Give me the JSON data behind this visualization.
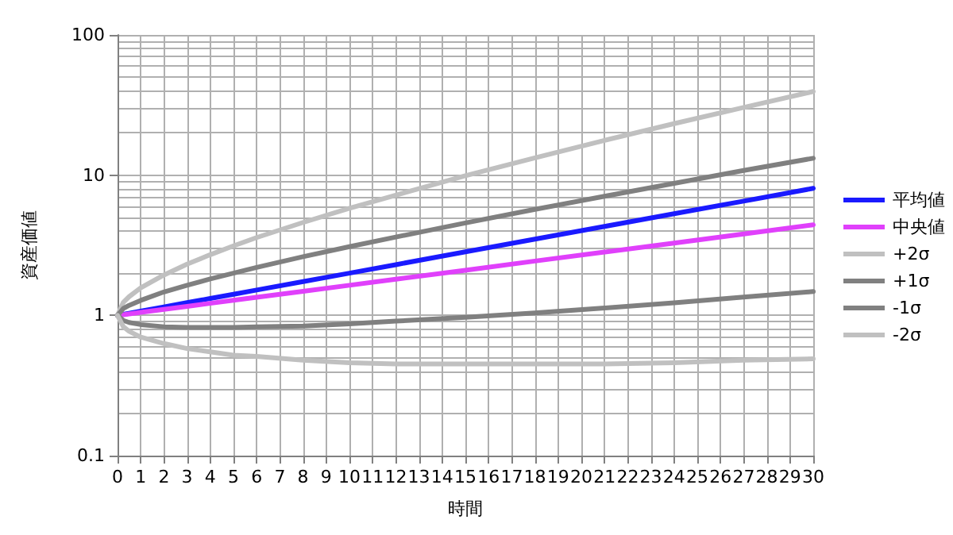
{
  "chart_data": {
    "type": "line",
    "xlabel": "時間",
    "ylabel": "資産価値",
    "x": [
      0,
      0.25,
      0.5,
      1,
      2,
      3,
      4,
      5,
      6,
      8,
      10,
      12,
      15,
      18,
      21,
      24,
      27,
      30
    ],
    "series": [
      {
        "name": "平均値",
        "color": "#1a1aff",
        "values": [
          1,
          1.017,
          1.035,
          1.072,
          1.149,
          1.232,
          1.32,
          1.415,
          1.517,
          1.743,
          2.0,
          2.3,
          2.84,
          3.5,
          4.31,
          5.31,
          6.53,
          8.05
        ]
      },
      {
        "name": "中央値",
        "color": "#e040fb",
        "values": [
          1,
          1.012,
          1.025,
          1.051,
          1.104,
          1.16,
          1.219,
          1.281,
          1.346,
          1.486,
          1.64,
          1.81,
          2.1,
          2.44,
          2.83,
          3.28,
          3.81,
          4.42
        ]
      },
      {
        "name": "+2σ",
        "color": "#c0c0c0",
        "values": [
          1,
          1.24,
          1.36,
          1.57,
          1.94,
          2.32,
          2.71,
          3.13,
          3.59,
          4.6,
          5.8,
          7.2,
          9.9,
          13.3,
          17.7,
          23.3,
          30.4,
          39.5
        ]
      },
      {
        "name": "+1σ",
        "color": "#808080",
        "values": [
          1,
          1.12,
          1.18,
          1.28,
          1.47,
          1.64,
          1.82,
          2.0,
          2.2,
          2.62,
          3.09,
          3.62,
          4.56,
          5.7,
          7.07,
          8.74,
          10.8,
          13.2
        ]
      },
      {
        "name": "-1σ",
        "color": "#808080",
        "values": [
          1,
          0.92,
          0.89,
          0.86,
          0.83,
          0.82,
          0.82,
          0.82,
          0.83,
          0.84,
          0.87,
          0.91,
          0.97,
          1.04,
          1.13,
          1.23,
          1.35,
          1.48
        ]
      },
      {
        "name": "-2σ",
        "color": "#c0c0c0",
        "values": [
          1,
          0.83,
          0.77,
          0.7,
          0.63,
          0.58,
          0.55,
          0.52,
          0.51,
          0.48,
          0.46,
          0.45,
          0.45,
          0.45,
          0.45,
          0.46,
          0.48,
          0.49
        ]
      }
    ],
    "xlim": [
      0,
      30
    ],
    "xticks": [
      0,
      1,
      2,
      3,
      4,
      5,
      6,
      7,
      8,
      9,
      10,
      11,
      12,
      13,
      14,
      15,
      16,
      17,
      18,
      19,
      20,
      21,
      22,
      23,
      24,
      25,
      26,
      27,
      28,
      29,
      30
    ],
    "ylim": [
      0.1,
      100
    ],
    "yticks": [
      0.1,
      1,
      10,
      100
    ],
    "log": true,
    "grid": true,
    "legend": "right",
    "marker": "none",
    "line_style": "solid"
  }
}
